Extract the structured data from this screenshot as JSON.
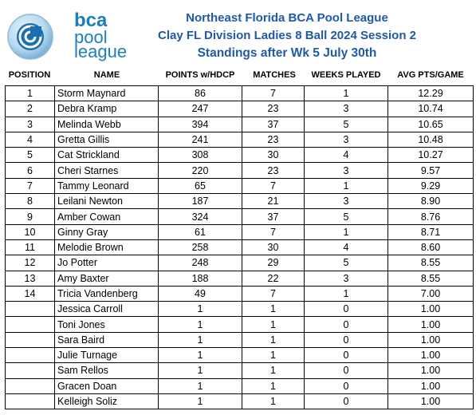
{
  "logo": {
    "line1": "bca",
    "line2": "pool",
    "line3": "league",
    "brand_color": "#1b7fb8"
  },
  "title": {
    "line1": "Northeast Florida BCA Pool League",
    "line2": "Clay FL Division  Ladies 8 Ball 2024 Session 2",
    "line3": "Standings after Wk 5 July 30th",
    "color": "#1f5aa6"
  },
  "columns": {
    "position": "POSITION",
    "name": "NAME",
    "points": "POINTS w/HDCP",
    "matches": "MATCHES",
    "weeks": "WEEKS PLAYED",
    "avg": "AVG PTS/GAME"
  },
  "rows": [
    {
      "pos": "1",
      "name": "Storm Maynard",
      "points": "86",
      "matches": "7",
      "weeks": "1",
      "avg": "12.29"
    },
    {
      "pos": "2",
      "name": "Debra Kramp",
      "points": "247",
      "matches": "23",
      "weeks": "3",
      "avg": "10.74"
    },
    {
      "pos": "3",
      "name": "Melinda Webb",
      "points": "394",
      "matches": "37",
      "weeks": "5",
      "avg": "10.65"
    },
    {
      "pos": "4",
      "name": "Gretta Gillis",
      "points": "241",
      "matches": "23",
      "weeks": "3",
      "avg": "10.48"
    },
    {
      "pos": "5",
      "name": "Cat Strickland",
      "points": "308",
      "matches": "30",
      "weeks": "4",
      "avg": "10.27"
    },
    {
      "pos": "6",
      "name": "Cheri Starnes",
      "points": "220",
      "matches": "23",
      "weeks": "3",
      "avg": "9.57"
    },
    {
      "pos": "7",
      "name": "Tammy Leonard",
      "points": "65",
      "matches": "7",
      "weeks": "1",
      "avg": "9.29"
    },
    {
      "pos": "8",
      "name": "Leilani Newton",
      "points": "187",
      "matches": "21",
      "weeks": "3",
      "avg": "8.90"
    },
    {
      "pos": "9",
      "name": "Amber Cowan",
      "points": "324",
      "matches": "37",
      "weeks": "5",
      "avg": "8.76"
    },
    {
      "pos": "10",
      "name": "Ginny Gray",
      "points": "61",
      "matches": "7",
      "weeks": "1",
      "avg": "8.71"
    },
    {
      "pos": "11",
      "name": "Melodie Brown",
      "points": "258",
      "matches": "30",
      "weeks": "4",
      "avg": "8.60"
    },
    {
      "pos": "12",
      "name": "Jo Potter",
      "points": "248",
      "matches": "29",
      "weeks": "5",
      "avg": "8.55"
    },
    {
      "pos": "13",
      "name": "Amy Baxter",
      "points": "188",
      "matches": "22",
      "weeks": "3",
      "avg": "8.55"
    },
    {
      "pos": "14",
      "name": "Tricia Vandenberg",
      "points": "49",
      "matches": "7",
      "weeks": "1",
      "avg": "7.00"
    },
    {
      "pos": "",
      "name": "Jessica Carroll",
      "points": "1",
      "matches": "1",
      "weeks": "0",
      "avg": "1.00"
    },
    {
      "pos": "",
      "name": "Toni Jones",
      "points": "1",
      "matches": "1",
      "weeks": "0",
      "avg": "1.00"
    },
    {
      "pos": "",
      "name": "Sara Baird",
      "points": "1",
      "matches": "1",
      "weeks": "0",
      "avg": "1.00"
    },
    {
      "pos": "",
      "name": "Julie Turnage",
      "points": "1",
      "matches": "1",
      "weeks": "0",
      "avg": "1.00"
    },
    {
      "pos": "",
      "name": "Sam Rellos",
      "points": "1",
      "matches": "1",
      "weeks": "0",
      "avg": "1.00"
    },
    {
      "pos": "",
      "name": "Gracen Doan",
      "points": "1",
      "matches": "1",
      "weeks": "0",
      "avg": "1.00"
    },
    {
      "pos": "",
      "name": "Kelleigh Soliz",
      "points": "1",
      "matches": "1",
      "weeks": "0",
      "avg": "1.00"
    }
  ]
}
